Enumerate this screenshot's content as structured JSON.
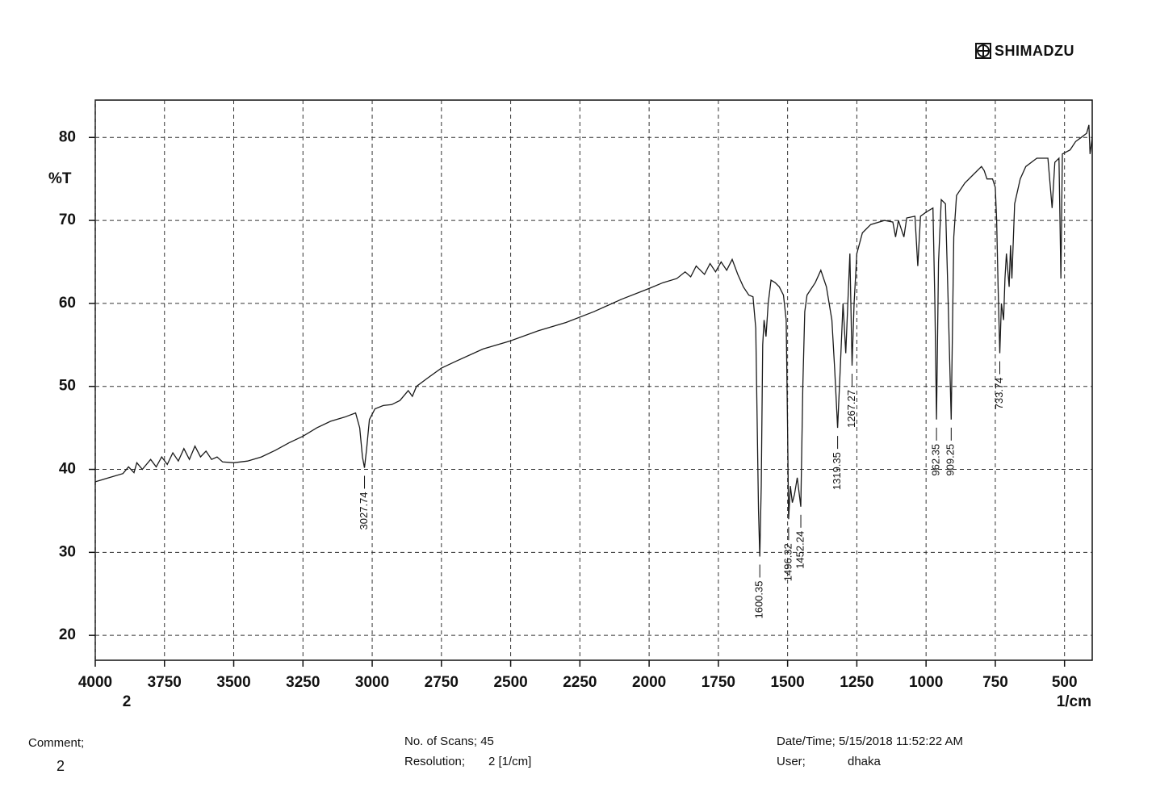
{
  "header": {
    "logo": "SHIMADZU"
  },
  "chart_data": {
    "type": "line",
    "y_label": "%T",
    "x_label": "1/cm",
    "x_note": "2",
    "color": "#1a1a1a",
    "grid": true,
    "xlim": [
      4000,
      400
    ],
    "ylim": [
      17,
      84.5
    ],
    "xticks": [
      4000,
      3750,
      3500,
      3250,
      3000,
      2750,
      2500,
      2250,
      2000,
      1750,
      1500,
      1250,
      1000,
      750,
      500
    ],
    "yticks": [
      20,
      30,
      40,
      50,
      60,
      70,
      80
    ],
    "x": [
      4000,
      3950,
      3900,
      3880,
      3860,
      3850,
      3830,
      3800,
      3780,
      3760,
      3740,
      3720,
      3700,
      3680,
      3660,
      3640,
      3620,
      3600,
      3580,
      3560,
      3540,
      3500,
      3450,
      3400,
      3350,
      3300,
      3250,
      3200,
      3150,
      3100,
      3060,
      3045,
      3035,
      3027.74,
      3020,
      3010,
      2990,
      2960,
      2930,
      2900,
      2870,
      2855,
      2840,
      2800,
      2750,
      2700,
      2600,
      2500,
      2400,
      2300,
      2200,
      2100,
      2000,
      1950,
      1900,
      1870,
      1850,
      1830,
      1800,
      1780,
      1760,
      1740,
      1720,
      1700,
      1680,
      1660,
      1640,
      1625,
      1615,
      1605,
      1600.35,
      1595,
      1590,
      1585,
      1578,
      1570,
      1560,
      1545,
      1530,
      1515,
      1505,
      1500,
      1496.32,
      1490,
      1483,
      1475,
      1465,
      1452.24,
      1445,
      1438,
      1430,
      1400,
      1380,
      1360,
      1340,
      1330,
      1319.35,
      1310,
      1300,
      1290,
      1280,
      1275,
      1267.27,
      1260,
      1250,
      1230,
      1200,
      1150,
      1120,
      1110,
      1100,
      1080,
      1070,
      1040,
      1030,
      1020,
      1000,
      975,
      968,
      962.35,
      955,
      945,
      930,
      920,
      909.25,
      900,
      890,
      860,
      830,
      800,
      790,
      780,
      760,
      750,
      745,
      740,
      733.74,
      728,
      720,
      715,
      710,
      700,
      695,
      690,
      680,
      660,
      640,
      600,
      560,
      545,
      535,
      520,
      513,
      508,
      480,
      460,
      440,
      420,
      412,
      408,
      400
    ],
    "values": [
      38.5,
      39.0,
      39.5,
      40.3,
      39.6,
      40.8,
      40.0,
      41.2,
      40.3,
      41.5,
      40.6,
      42.0,
      41.0,
      42.5,
      41.2,
      42.8,
      41.5,
      42.2,
      41.2,
      41.5,
      40.9,
      40.8,
      41.0,
      41.5,
      42.3,
      43.2,
      44.0,
      45.0,
      45.8,
      46.3,
      46.8,
      45.0,
      41.5,
      40.2,
      42.5,
      46.0,
      47.3,
      47.7,
      47.8,
      48.3,
      49.5,
      48.8,
      50.0,
      51.0,
      52.2,
      53.0,
      54.5,
      55.5,
      56.7,
      57.7,
      59.0,
      60.5,
      61.8,
      62.5,
      63.0,
      63.8,
      63.2,
      64.5,
      63.5,
      64.8,
      63.8,
      65.0,
      64.0,
      65.3,
      63.5,
      62.0,
      61.0,
      60.8,
      57.0,
      35.0,
      29.5,
      38.0,
      55.0,
      58.0,
      56.0,
      60.0,
      62.8,
      62.5,
      62.0,
      61.0,
      58.0,
      45.0,
      34.0,
      38.0,
      36.0,
      37.0,
      39.0,
      35.5,
      50.0,
      59.0,
      61.0,
      62.5,
      64.0,
      62.0,
      58.0,
      52.0,
      45.0,
      52.0,
      60.0,
      54.0,
      62.0,
      66.0,
      52.5,
      60.0,
      66.0,
      68.5,
      69.5,
      70.0,
      69.8,
      68.0,
      70.0,
      68.0,
      70.3,
      70.5,
      64.5,
      70.5,
      71.0,
      71.5,
      60.0,
      46.0,
      65.0,
      72.5,
      72.0,
      60.0,
      46.0,
      68.0,
      73.0,
      74.5,
      75.5,
      76.5,
      76.0,
      75.0,
      75.0,
      74.0,
      70.0,
      62.0,
      54.0,
      60.0,
      58.0,
      63.0,
      66.0,
      62.0,
      67.0,
      63.0,
      72.0,
      75.0,
      76.5,
      77.5,
      77.5,
      71.5,
      77.0,
      77.5,
      63.0,
      78.0,
      78.5,
      79.5,
      80.0,
      80.5,
      81.5,
      78.0,
      80.0
    ],
    "peaks": [
      {
        "x": 3027.74,
        "y": 40.2
      },
      {
        "x": 1600.35,
        "y": 29.5
      },
      {
        "x": 1496.32,
        "y": 34.0
      },
      {
        "x": 1452.24,
        "y": 35.5
      },
      {
        "x": 1319.35,
        "y": 45.0
      },
      {
        "x": 1267.27,
        "y": 52.5
      },
      {
        "x": 962.35,
        "y": 46.0
      },
      {
        "x": 909.25,
        "y": 46.0
      },
      {
        "x": 733.74,
        "y": 54.0
      }
    ]
  },
  "footer": {
    "comment_label": "Comment;",
    "comment": "2",
    "scans": "No. of Scans; 45",
    "resolution_label": "Resolution;",
    "resolution": "2 [1/cm]",
    "datetime": "Date/Time; 5/15/2018 11:52:22 AM",
    "user_label": "User;",
    "user": "dhaka"
  }
}
